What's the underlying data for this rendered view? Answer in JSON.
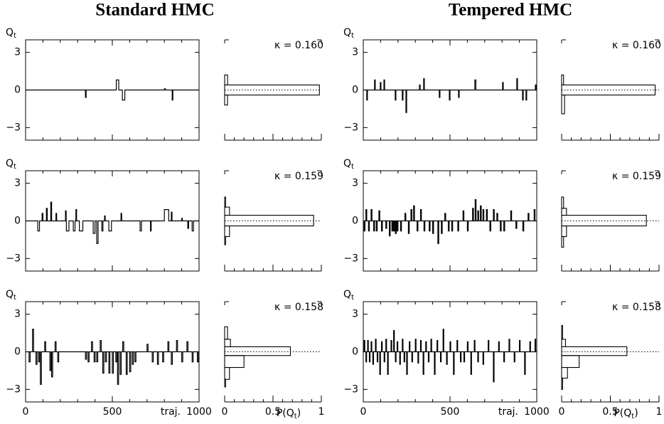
{
  "titles": [
    "Standard HMC",
    "Tempered HMC"
  ],
  "chart_data": [
    {
      "type": "line",
      "step": true,
      "color": "#000000",
      "ylabel": [
        "Q",
        "t"
      ],
      "x": [
        0,
        345,
        349,
        523,
        537,
        558,
        572,
        800,
        806,
        845,
        849,
        1000
      ],
      "values": [
        0,
        -0.6,
        0,
        0.8,
        0,
        -0.8,
        0,
        0.1,
        0,
        -0.8,
        0,
        0
      ],
      "xlim": [
        0,
        1000
      ],
      "ylim": [
        -4,
        4
      ],
      "yticks": [
        {
          "value": -3,
          "label": "−3"
        },
        0,
        3
      ],
      "xticks": [
        0,
        500,
        1000
      ],
      "xtick_labels": false,
      "xminor": 100
    },
    {
      "type": "histogram",
      "orientation": "horizontal",
      "color": "#000000",
      "annotation": "κ = 0.160",
      "bins": [
        -1.2,
        -0.4,
        0.4,
        1.2
      ],
      "values": [
        0.03,
        0.98,
        0.03
      ],
      "xlim": [
        0,
        1
      ],
      "ylim": [
        -4,
        4
      ],
      "xticks": [
        0,
        0.5,
        1
      ],
      "xtick_labels": false,
      "xminor": 0.1,
      "zero_line": 0
    },
    {
      "type": "line",
      "step": true,
      "color": "#000000",
      "ylabel": [
        "Q",
        "t"
      ],
      "x": [
        0,
        20,
        24,
        65,
        69,
        98,
        102,
        119,
        123,
        184,
        188,
        225,
        229,
        246,
        250,
        324,
        328,
        348,
        352,
        438,
        442,
        496,
        500,
        549,
        553,
        643,
        649,
        803,
        807,
        885,
        889,
        918,
        922,
        938,
        942,
        992,
        996,
        1000
      ],
      "values": [
        0,
        -0.8,
        0,
        0.8,
        0,
        0.6,
        0,
        0.8,
        0,
        -0.8,
        0,
        -0.8,
        0,
        -1.8,
        0,
        0.4,
        0,
        0.9,
        0,
        -0.6,
        0,
        -0.8,
        0,
        -0.6,
        0,
        0.8,
        0,
        0.6,
        0,
        0.9,
        0,
        -0.8,
        0,
        -0.8,
        0,
        0.4,
        0,
        0
      ],
      "xlim": [
        0,
        1000
      ],
      "ylim": [
        -4,
        4
      ],
      "yticks": [
        {
          "value": -3,
          "label": "−3"
        },
        0,
        3
      ],
      "xticks": [
        0,
        500,
        1000
      ],
      "xtick_labels": false,
      "xminor": 100
    },
    {
      "type": "histogram",
      "orientation": "horizontal",
      "color": "#000000",
      "annotation": "κ = 0.160",
      "bins": [
        -1.9,
        -0.4,
        0.4,
        1.2
      ],
      "values": [
        0.03,
        0.96,
        0.02
      ],
      "xlim": [
        0,
        1
      ],
      "ylim": [
        -4,
        4
      ],
      "xticks": [
        0,
        0.5,
        1
      ],
      "xtick_labels": false,
      "xminor": 0.1,
      "zero_line": 0
    },
    {
      "type": "line",
      "step": true,
      "color": "#000000",
      "ylabel": [
        "Q",
        "t"
      ],
      "x": [
        0,
        70,
        80,
        95,
        100,
        120,
        125,
        145,
        150,
        175,
        179,
        230,
        234,
        235,
        250,
        275,
        285,
        290,
        294,
        310,
        330,
        390,
        400,
        410,
        418,
        440,
        446,
        455,
        459,
        480,
        495,
        550,
        554,
        660,
        668,
        720,
        724,
        800,
        825,
        840,
        844,
        900,
        904,
        935,
        940,
        960,
        968,
        1000
      ],
      "values": [
        0,
        -0.8,
        0,
        0.6,
        0,
        1.0,
        0,
        1.5,
        0,
        0.6,
        0,
        0.8,
        0,
        -0.8,
        0,
        -0.8,
        0,
        0.9,
        0,
        -0.8,
        0,
        -1.0,
        0,
        -1.8,
        0,
        -0.8,
        0,
        0.4,
        0,
        -0.8,
        0,
        0.6,
        0,
        -0.8,
        0,
        -0.8,
        0,
        0.9,
        0,
        0.7,
        0,
        0.2,
        0,
        -0.6,
        0,
        -0.8,
        0,
        0
      ],
      "xlim": [
        0,
        1000
      ],
      "ylim": [
        -4,
        4
      ],
      "yticks": [
        {
          "value": -3,
          "label": "−3"
        },
        0,
        3
      ],
      "xticks": [
        0,
        500,
        1000
      ],
      "xtick_labels": false,
      "xminor": 100
    },
    {
      "type": "histogram",
      "orientation": "horizontal",
      "color": "#000000",
      "annotation": "κ = 0.159",
      "bins": [
        -1.9,
        -1.25,
        -0.4,
        0.45,
        1.1,
        1.9
      ],
      "values": [
        0.01,
        0.05,
        0.92,
        0.05,
        0.01
      ],
      "xlim": [
        0,
        1
      ],
      "ylim": [
        -4,
        4
      ],
      "xticks": [
        0,
        0.5,
        1
      ],
      "xtick_labels": false,
      "xminor": 0.1,
      "zero_line": 0
    },
    {
      "type": "line",
      "step": true,
      "color": "#000000",
      "ylabel": [
        "Q",
        "t"
      ],
      "x": [
        0,
        5,
        10,
        15,
        20,
        30,
        35,
        45,
        50,
        60,
        65,
        75,
        80,
        90,
        95,
        105,
        110,
        130,
        135,
        150,
        155,
        165,
        170,
        175,
        180,
        185,
        190,
        195,
        200,
        215,
        220,
        240,
        245,
        260,
        265,
        275,
        280,
        290,
        295,
        310,
        315,
        330,
        335,
        350,
        355,
        380,
        385,
        400,
        405,
        430,
        435,
        450,
        455,
        470,
        475,
        490,
        495,
        510,
        515,
        545,
        550,
        575,
        580,
        600,
        605,
        630,
        635,
        645,
        650,
        660,
        665,
        675,
        680,
        690,
        695,
        710,
        715,
        730,
        735,
        750,
        755,
        770,
        775,
        790,
        795,
        810,
        815,
        850,
        855,
        880,
        885,
        920,
        925,
        950,
        955,
        985,
        990,
        1000
      ],
      "values": [
        0,
        -0.8,
        0,
        0.9,
        0,
        -0.8,
        0,
        0.9,
        0,
        -0.8,
        0,
        -0.8,
        0,
        0.8,
        0,
        -0.8,
        0,
        -0.6,
        0,
        -1.2,
        0,
        -0.8,
        0,
        -0.8,
        0,
        -1.0,
        0,
        -0.8,
        0,
        -0.8,
        0,
        0.6,
        0,
        -1.0,
        0,
        0.9,
        0,
        1.2,
        0,
        -0.8,
        0,
        0.9,
        0,
        -0.8,
        0,
        -0.8,
        0,
        -1.0,
        0,
        -1.8,
        0,
        -1.0,
        0,
        0.6,
        0,
        -0.8,
        0,
        -0.8,
        0,
        -0.8,
        0,
        0.8,
        0,
        -0.8,
        0,
        1.0,
        0,
        1.7,
        0,
        0.8,
        0,
        1.2,
        0,
        0.9,
        0,
        0.9,
        0,
        -0.8,
        0,
        0.9,
        0,
        0.6,
        0,
        -0.8,
        0,
        -0.8,
        0,
        0.8,
        0,
        -0.6,
        0,
        -0.8,
        0,
        0.6,
        0,
        0.9,
        0,
        0
      ],
      "xlim": [
        0,
        1000
      ],
      "ylim": [
        -4,
        4
      ],
      "yticks": [
        {
          "value": -3,
          "label": "−3"
        },
        0,
        3
      ],
      "xticks": [
        0,
        500,
        1000
      ],
      "xtick_labels": false,
      "xminor": 100
    },
    {
      "type": "histogram",
      "orientation": "horizontal",
      "color": "#000000",
      "annotation": "κ = 0.159",
      "bins": [
        -2.1,
        -1.25,
        -0.4,
        0.45,
        1.0,
        1.9
      ],
      "values": [
        0.02,
        0.05,
        0.87,
        0.05,
        0.02
      ],
      "xlim": [
        0,
        1
      ],
      "ylim": [
        -4,
        4
      ],
      "xticks": [
        0,
        0.5,
        1
      ],
      "xtick_labels": false,
      "xminor": 0.1,
      "zero_line": 0
    },
    {
      "type": "line",
      "step": true,
      "color": "#000000",
      "ylabel": [
        "Q",
        "t"
      ],
      "xlabel": "traj.",
      "x": [
        0,
        20,
        26,
        40,
        46,
        60,
        66,
        75,
        81,
        85,
        91,
        110,
        116,
        140,
        146,
        150,
        156,
        170,
        176,
        185,
        191,
        345,
        351,
        360,
        366,
        380,
        386,
        395,
        401,
        410,
        416,
        430,
        436,
        445,
        451,
        460,
        466,
        480,
        486,
        500,
        506,
        520,
        526,
        530,
        536,
        545,
        551,
        560,
        566,
        580,
        586,
        600,
        606,
        615,
        621,
        630,
        636,
        700,
        706,
        730,
        736,
        760,
        766,
        790,
        796,
        820,
        826,
        840,
        846,
        870,
        876,
        900,
        906,
        930,
        936,
        960,
        966,
        990,
        996,
        1000
      ],
      "values": [
        0,
        -0.8,
        0,
        1.8,
        0,
        -1.0,
        0,
        -0.8,
        0,
        -2.6,
        0,
        0.8,
        0,
        -1.5,
        0,
        -2.0,
        0,
        0.8,
        0,
        -0.8,
        0,
        -0.6,
        0,
        -0.8,
        0,
        0.8,
        0,
        -0.8,
        0,
        -0.8,
        0,
        0.9,
        0,
        -1.7,
        0,
        -0.8,
        0,
        -1.7,
        0,
        -1.7,
        0,
        -0.8,
        0,
        -2.6,
        0,
        -1.8,
        0,
        0.8,
        0,
        -1.8,
        0,
        -1.6,
        0,
        -1.0,
        0,
        -0.8,
        0,
        0.6,
        0,
        -0.8,
        0,
        -1.0,
        0,
        -0.8,
        0,
        0.8,
        0,
        -1.0,
        0,
        0.9,
        0,
        -0.8,
        0,
        0.8,
        0,
        -0.8,
        0,
        -0.8,
        0,
        0
      ],
      "xlim": [
        0,
        1000
      ],
      "ylim": [
        -4,
        4
      ],
      "yticks": [
        {
          "value": -3,
          "label": "−3"
        },
        0,
        3
      ],
      "xticks": [
        0,
        500,
        1000
      ],
      "xtick_labels": true,
      "xminor": 100
    },
    {
      "type": "histogram",
      "orientation": "horizontal",
      "color": "#000000",
      "annotation": "κ = 0.158",
      "xlabel": [
        "P(Q",
        "t",
        ")"
      ],
      "bins": [
        -2.8,
        -2.2,
        -1.25,
        -0.3,
        0.4,
        1.0,
        2.0
      ],
      "values": [
        0.01,
        0.05,
        0.2,
        0.68,
        0.06,
        0.03
      ],
      "xlim": [
        0,
        1
      ],
      "ylim": [
        -4,
        4
      ],
      "xticks": [
        0,
        0.5,
        1
      ],
      "xtick_labels": true,
      "xminor": 0.1,
      "zero_line": 0
    },
    {
      "type": "line",
      "step": true,
      "color": "#000000",
      "ylabel": [
        "Q",
        "t"
      ],
      "xlabel": "traj.",
      "x": [
        0,
        5,
        9,
        15,
        19,
        25,
        29,
        35,
        39,
        45,
        49,
        55,
        59,
        70,
        74,
        80,
        84,
        95,
        99,
        105,
        109,
        120,
        124,
        130,
        134,
        140,
        144,
        160,
        164,
        175,
        179,
        185,
        189,
        195,
        199,
        210,
        214,
        225,
        229,
        235,
        239,
        250,
        254,
        265,
        269,
        280,
        284,
        300,
        304,
        315,
        319,
        330,
        334,
        345,
        349,
        360,
        364,
        375,
        379,
        390,
        394,
        410,
        414,
        425,
        429,
        445,
        449,
        460,
        464,
        480,
        484,
        500,
        504,
        520,
        524,
        540,
        544,
        560,
        564,
        580,
        584,
        600,
        604,
        620,
        624,
        640,
        644,
        660,
        664,
        690,
        694,
        720,
        724,
        750,
        754,
        780,
        784,
        810,
        814,
        840,
        844,
        870,
        874,
        900,
        904,
        930,
        934,
        960,
        964,
        990,
        994,
        1000
      ],
      "values": [
        0,
        0.9,
        0,
        -0.8,
        0,
        0.9,
        0,
        -0.8,
        0,
        0.8,
        0,
        -1.0,
        0,
        1.0,
        0,
        -0.8,
        0,
        -1.8,
        0,
        0.8,
        0,
        -0.8,
        0,
        1.0,
        0,
        -1.8,
        0,
        0.9,
        0,
        1.7,
        0,
        -0.8,
        0,
        0.8,
        0,
        -1.0,
        0,
        1.0,
        0,
        -0.8,
        0,
        -1.8,
        0,
        0.8,
        0,
        -0.8,
        0,
        1.0,
        0,
        -0.9,
        0,
        0.9,
        0,
        -1.8,
        0,
        0.8,
        0,
        -0.8,
        0,
        1.0,
        0,
        -1.8,
        0,
        0.9,
        0,
        -0.8,
        0,
        1.8,
        0,
        -1.0,
        0,
        0.8,
        0,
        -1.8,
        0,
        0.9,
        0,
        -0.8,
        0,
        -0.8,
        0,
        0.8,
        0,
        -1.8,
        0,
        0.9,
        0,
        -0.8,
        0,
        -1.0,
        0,
        0.9,
        0,
        -2.4,
        0,
        0.8,
        0,
        -0.8,
        0,
        1.0,
        0,
        -0.8,
        0,
        0.9,
        0,
        -1.8,
        0,
        0.8,
        0,
        1.0,
        0,
        0
      ],
      "xlim": [
        0,
        1000
      ],
      "ylim": [
        -4,
        4
      ],
      "yticks": [
        {
          "value": -3,
          "label": "−3"
        },
        0,
        3
      ],
      "xticks": [
        0,
        500,
        1000
      ],
      "xtick_labels": true,
      "xminor": 100
    },
    {
      "type": "histogram",
      "orientation": "horizontal",
      "color": "#000000",
      "annotation": "κ = 0.158",
      "xlabel": [
        "P(Q",
        "t",
        ")"
      ],
      "bins": [
        -3.0,
        -2.1,
        -1.25,
        -0.3,
        0.4,
        1.0,
        2.1
      ],
      "values": [
        0.01,
        0.06,
        0.18,
        0.67,
        0.04,
        0.01
      ],
      "xlim": [
        0,
        1
      ],
      "ylim": [
        -4,
        4
      ],
      "xticks": [
        0,
        0.5,
        1
      ],
      "xtick_labels": true,
      "xminor": 0.1,
      "zero_line": 0
    }
  ]
}
